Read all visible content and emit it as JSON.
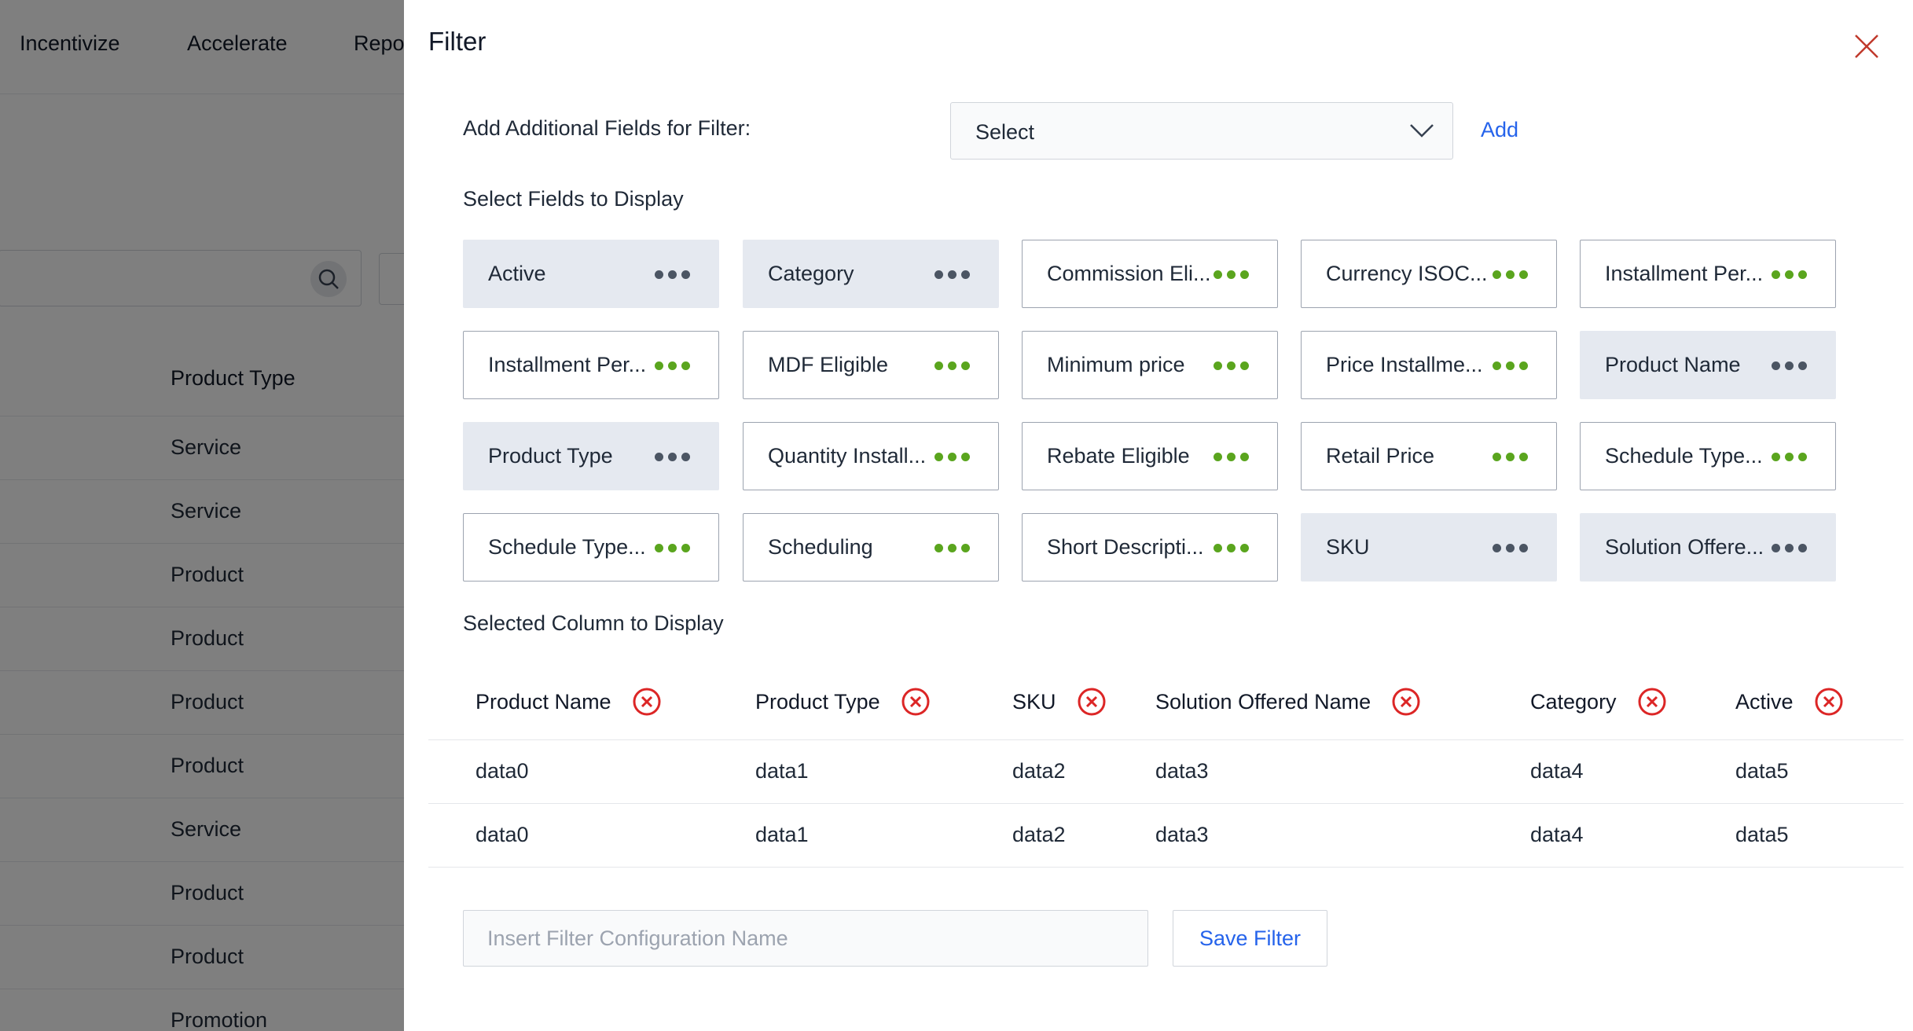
{
  "background": {
    "nav": [
      "Incentivize",
      "Accelerate",
      "Repo"
    ],
    "column_header": "Product Type",
    "rows": [
      "Service",
      "Service",
      "Product",
      "Product",
      "Product",
      "Product",
      "Service",
      "Product",
      "Product",
      "Promotion"
    ]
  },
  "filter": {
    "title": "Filter",
    "add_fields_label": "Add Additional Fields for Filter:",
    "select_value": "Select",
    "add_label": "Add",
    "select_fields_label": "Select Fields to Display",
    "fields": [
      {
        "label": "Active",
        "selected": true
      },
      {
        "label": "Category",
        "selected": true
      },
      {
        "label": "Commission Eli...",
        "selected": false
      },
      {
        "label": "Currency ISOC...",
        "selected": false
      },
      {
        "label": "Installment Per...",
        "selected": false
      },
      {
        "label": "Installment Per...",
        "selected": false
      },
      {
        "label": "MDF Eligible",
        "selected": false
      },
      {
        "label": "Minimum price",
        "selected": false
      },
      {
        "label": "Price Installme...",
        "selected": false
      },
      {
        "label": "Product Name",
        "selected": true
      },
      {
        "label": "Product Type",
        "selected": true
      },
      {
        "label": "Quantity Install...",
        "selected": false
      },
      {
        "label": "Rebate Eligible",
        "selected": false
      },
      {
        "label": "Retail Price",
        "selected": false
      },
      {
        "label": "Schedule Type...",
        "selected": false
      },
      {
        "label": "Schedule Type...",
        "selected": false
      },
      {
        "label": "Scheduling",
        "selected": false
      },
      {
        "label": "Short Descripti...",
        "selected": false
      },
      {
        "label": "SKU",
        "selected": true
      },
      {
        "label": "Solution Offere...",
        "selected": true
      }
    ],
    "selected_columns_label": "Selected Column to Display",
    "columns": [
      "Product Name",
      "Product Type",
      "SKU",
      "Solution Offered Name",
      "Category",
      "Active"
    ],
    "rows": [
      [
        "data0",
        "data1",
        "data2",
        "data3",
        "data4",
        "data5"
      ],
      [
        "data0",
        "data1",
        "data2",
        "data3",
        "data4",
        "data5"
      ]
    ],
    "config_placeholder": "Insert Filter Configuration Name",
    "save_label": "Save Filter"
  },
  "colors": {
    "accent": "#2563eb",
    "remove": "#dc2626",
    "dots_active": "#5aa51e",
    "dots_selected": "#4b5563",
    "chip_selected_bg": "#e5e9f0"
  }
}
